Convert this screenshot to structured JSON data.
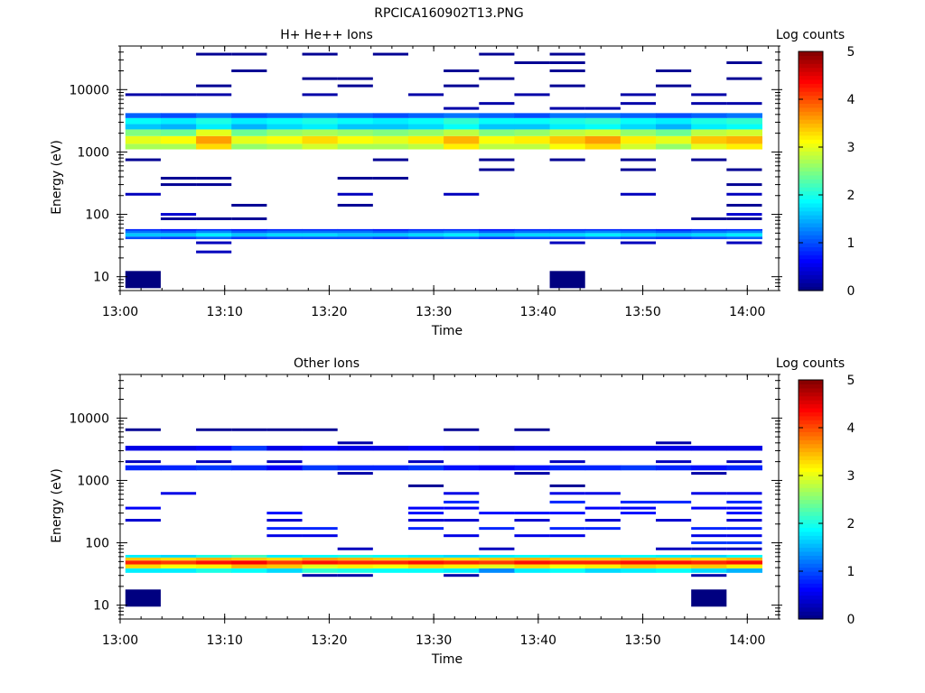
{
  "figure": {
    "title": "RPCICA160902T13.PNG"
  },
  "chart_data": [
    {
      "type": "heatmap",
      "title": "H+ He++ Ions",
      "xlabel": "Time",
      "ylabel": "Energy (eV)",
      "x_range": [
        "13:00",
        "14:03"
      ],
      "x_ticks": [
        "13:00",
        "13:10",
        "13:20",
        "13:30",
        "13:40",
        "13:50",
        "14:00"
      ],
      "y_scale": "log",
      "y_range": [
        6,
        50000
      ],
      "y_ticks": [
        "10",
        "100",
        "1000",
        "10000"
      ],
      "colorbar": {
        "label": "Log counts",
        "min": 0,
        "max": 5,
        "ticks": [
          "0",
          "1",
          "2",
          "3",
          "4",
          "5"
        ]
      },
      "data": [
        {
          "band": "solid",
          "e_min": 1100,
          "e_max": 1350,
          "z": [
            2.7,
            2.7,
            3.3,
            2.6,
            2.7,
            2.9,
            2.7,
            2.7,
            2.8,
            3.2,
            2.8,
            2.8,
            3.1,
            3.3,
            2.9,
            2.6,
            3.0,
            3.2
          ]
        },
        {
          "band": "solid",
          "e_min": 1350,
          "e_max": 1800,
          "z": [
            3.0,
            3.1,
            3.6,
            3.0,
            3.1,
            3.3,
            3.1,
            3.0,
            3.2,
            3.5,
            3.1,
            3.2,
            3.4,
            3.6,
            3.2,
            3.0,
            3.4,
            3.5
          ]
        },
        {
          "band": "solid",
          "e_min": 1800,
          "e_max": 2300,
          "z": [
            2.5,
            2.4,
            3.0,
            2.4,
            2.6,
            2.7,
            2.6,
            2.5,
            2.6,
            2.8,
            2.5,
            2.6,
            2.8,
            2.9,
            2.6,
            2.4,
            2.8,
            2.9
          ]
        },
        {
          "band": "solid",
          "e_min": 2300,
          "e_max": 2800,
          "z": [
            1.6,
            1.5,
            1.8,
            1.5,
            1.7,
            1.8,
            1.6,
            1.6,
            1.7,
            1.9,
            1.6,
            1.6,
            1.8,
            1.9,
            1.7,
            1.5,
            1.8,
            1.9
          ]
        },
        {
          "band": "solid",
          "e_min": 2800,
          "e_max": 3500,
          "z": [
            1.9,
            1.8,
            2.0,
            1.8,
            1.9,
            2.0,
            1.9,
            1.8,
            1.9,
            2.1,
            1.9,
            1.9,
            2.0,
            2.1,
            1.9,
            1.8,
            2.0,
            2.1
          ]
        },
        {
          "band": "solid",
          "e_min": 3500,
          "e_max": 4200,
          "z": [
            1.1,
            1.0,
            1.2,
            1.0,
            1.1,
            1.2,
            1.1,
            1.0,
            1.1,
            1.2,
            1.1,
            1.0,
            1.2,
            1.2,
            1.1,
            1.0,
            1.1,
            1.2
          ]
        },
        {
          "band": "solid",
          "e_min": 40,
          "e_max": 44,
          "z": [
            1.0,
            0.9,
            1.1,
            0.9,
            1.0,
            1.0,
            1.0,
            0.9,
            1.0,
            1.1,
            0.9,
            1.0,
            1.0,
            1.1,
            1.0,
            0.9,
            1.0,
            1.1
          ]
        },
        {
          "band": "solid",
          "e_min": 44,
          "e_max": 50,
          "z": [
            1.6,
            1.6,
            1.8,
            1.6,
            1.7,
            1.7,
            1.6,
            1.6,
            1.7,
            1.8,
            1.6,
            1.7,
            1.7,
            1.8,
            1.7,
            1.6,
            1.7,
            1.8
          ]
        },
        {
          "band": "solid",
          "e_min": 50,
          "e_max": 55,
          "z": [
            1.2,
            1.1,
            1.3,
            1.1,
            1.2,
            1.2,
            1.2,
            1.1,
            1.2,
            1.3,
            1.1,
            1.2,
            1.2,
            1.3,
            1.2,
            1.1,
            1.2,
            1.3
          ]
        },
        {
          "band": "solid",
          "e_min": 55,
          "e_max": 58,
          "z": [
            0.8,
            0.7,
            0.8,
            0.7,
            0.8,
            0.8,
            0.8,
            0.7,
            0.8,
            0.8,
            0.7,
            0.8,
            0.8,
            0.8,
            0.8,
            0.7,
            0.8,
            0.8
          ]
        },
        {
          "band": "sparse",
          "e": 8300,
          "cols": [
            0,
            1,
            2,
            5,
            8,
            11,
            14,
            16
          ],
          "z": 0.2
        },
        {
          "band": "sparse",
          "e": 11500,
          "cols": [
            2,
            6,
            9,
            12,
            15
          ],
          "z": 0.1
        },
        {
          "band": "sparse",
          "e": 15000,
          "cols": [
            5,
            6,
            10,
            17
          ],
          "z": 0.1
        },
        {
          "band": "sparse",
          "e": 20000,
          "cols": [
            3,
            9,
            12,
            15
          ],
          "z": 0.1
        },
        {
          "band": "sparse",
          "e": 27000,
          "cols": [
            11,
            12,
            17
          ],
          "z": 0.1
        },
        {
          "band": "sparse",
          "e": 37000,
          "cols": [
            2,
            3,
            5,
            7,
            10,
            12
          ],
          "z": 0.1
        },
        {
          "band": "sparse",
          "e": 6000,
          "cols": [
            10,
            14,
            16,
            17
          ],
          "z": 0.2
        },
        {
          "band": "sparse",
          "e": 5000,
          "cols": [
            9,
            12,
            13
          ],
          "z": 0.2
        },
        {
          "band": "sparse",
          "e": 750,
          "cols": [
            0,
            7,
            10,
            12,
            14,
            16
          ],
          "z": 0.1
        },
        {
          "band": "sparse",
          "e": 520,
          "cols": [
            10,
            14,
            17
          ],
          "z": 0.1
        },
        {
          "band": "sparse",
          "e": 380,
          "cols": [
            1,
            2,
            6,
            7
          ],
          "z": 0.1
        },
        {
          "band": "sparse",
          "e": 300,
          "cols": [
            1,
            2,
            17
          ],
          "z": 0.1
        },
        {
          "band": "sparse",
          "e": 210,
          "cols": [
            0,
            6,
            9,
            14,
            17
          ],
          "z": 0.3
        },
        {
          "band": "sparse",
          "e": 140,
          "cols": [
            3,
            6,
            17
          ],
          "z": 0.1
        },
        {
          "band": "sparse",
          "e": 100,
          "cols": [
            1,
            17
          ],
          "z": 0.4
        },
        {
          "band": "sparse",
          "e": 85,
          "cols": [
            1,
            2,
            3,
            16,
            17
          ],
          "z": 0.1
        },
        {
          "band": "sparse",
          "e": 35,
          "cols": [
            2,
            12,
            14,
            17
          ],
          "z": 0.3
        },
        {
          "band": "sparse",
          "e": 25,
          "cols": [
            2
          ],
          "z": 0.3
        },
        {
          "band": "sparse",
          "e": 9,
          "cols": [
            0,
            12
          ],
          "z": 0.0,
          "tall": true
        }
      ]
    },
    {
      "type": "heatmap",
      "title": "Other Ions",
      "xlabel": "Time",
      "ylabel": "Energy (eV)",
      "x_range": [
        "13:00",
        "14:03"
      ],
      "x_ticks": [
        "13:00",
        "13:10",
        "13:20",
        "13:30",
        "13:40",
        "13:50",
        "14:00"
      ],
      "y_scale": "log",
      "y_range": [
        6,
        50000
      ],
      "y_ticks": [
        "10",
        "100",
        "1000",
        "10000"
      ],
      "colorbar": {
        "label": "Log counts",
        "min": 0,
        "max": 5,
        "ticks": [
          "0",
          "1",
          "2",
          "3",
          "4",
          "5"
        ]
      },
      "data": [
        {
          "band": "solid",
          "e_min": 33,
          "e_max": 39,
          "z": [
            1.8,
            1.8,
            2.0,
            1.9,
            1.7,
            2.1,
            2.0,
            1.9,
            1.9,
            1.8,
            1.3,
            1.8,
            1.9,
            1.7,
            1.8,
            1.9,
            1.7,
            1.5
          ]
        },
        {
          "band": "solid",
          "e_min": 39,
          "e_max": 45,
          "z": [
            3.3,
            3.1,
            3.2,
            3.5,
            3.4,
            3.0,
            3.2,
            3.1,
            3.3,
            3.2,
            3.0,
            3.3,
            3.1,
            3.2,
            3.4,
            3.3,
            3.4,
            3.2
          ]
        },
        {
          "band": "solid",
          "e_min": 45,
          "e_max": 52,
          "z": [
            4.2,
            4.1,
            4.3,
            4.4,
            4.1,
            4.3,
            4.2,
            4.2,
            4.3,
            4.2,
            4.1,
            4.3,
            4.2,
            4.2,
            4.3,
            4.3,
            4.2,
            4.3
          ]
        },
        {
          "band": "solid",
          "e_min": 52,
          "e_max": 58,
          "z": [
            3.4,
            3.3,
            3.5,
            3.4,
            3.3,
            3.6,
            3.5,
            3.4,
            3.4,
            3.3,
            3.4,
            3.5,
            3.4,
            3.4,
            3.5,
            3.4,
            3.3,
            3.5
          ]
        },
        {
          "band": "solid",
          "e_min": 58,
          "e_max": 64,
          "z": [
            1.8,
            1.7,
            2.0,
            2.2,
            1.8,
            1.9,
            2.0,
            1.9,
            1.8,
            1.7,
            1.8,
            1.9,
            1.8,
            1.8,
            1.9,
            1.8,
            1.7,
            1.9
          ]
        },
        {
          "band": "solid",
          "e_min": 1450,
          "e_max": 1750,
          "z": [
            0.8,
            0.8,
            0.9,
            0.8,
            0.6,
            0.9,
            0.8,
            0.8,
            0.9,
            0.7,
            0.6,
            0.7,
            0.8,
            0.8,
            0.9,
            0.8,
            0.7,
            0.8
          ]
        },
        {
          "band": "solid",
          "e_min": 3000,
          "e_max": 3600,
          "z": [
            0.5,
            0.5,
            0.6,
            0.9,
            0.5,
            0.6,
            0.5,
            0.5,
            0.6,
            0.5,
            0.4,
            0.5,
            0.5,
            0.5,
            0.5,
            0.5,
            0.5,
            0.5
          ]
        },
        {
          "band": "sparse",
          "e": 6500,
          "cols": [
            0,
            2,
            3,
            4,
            5,
            9,
            11
          ],
          "z": 0.1
        },
        {
          "band": "sparse",
          "e": 4000,
          "cols": [
            6,
            15
          ],
          "z": 0.2
        },
        {
          "band": "sparse",
          "e": 2000,
          "cols": [
            0,
            2,
            4,
            8,
            12,
            15,
            17
          ],
          "z": 0.3
        },
        {
          "band": "sparse",
          "e": 1300,
          "cols": [
            6,
            11,
            16
          ],
          "z": 0.2
        },
        {
          "band": "sparse",
          "e": 820,
          "cols": [
            8,
            12
          ],
          "z": 0.1
        },
        {
          "band": "sparse",
          "e": 620,
          "cols": [
            1,
            9,
            12,
            13,
            16,
            17
          ],
          "z": 0.5
        },
        {
          "band": "sparse",
          "e": 450,
          "cols": [
            9,
            12,
            14,
            15,
            17
          ],
          "z": 0.8
        },
        {
          "band": "sparse",
          "e": 360,
          "cols": [
            0,
            8,
            9,
            13,
            14,
            16,
            17
          ],
          "z": 0.6
        },
        {
          "band": "sparse",
          "e": 300,
          "cols": [
            4,
            8,
            10,
            11,
            12,
            14,
            17
          ],
          "z": 0.7
        },
        {
          "band": "sparse",
          "e": 230,
          "cols": [
            0,
            4,
            8,
            9,
            11,
            13,
            15,
            17
          ],
          "z": 0.4
        },
        {
          "band": "sparse",
          "e": 170,
          "cols": [
            4,
            5,
            8,
            10,
            12,
            13,
            16,
            17
          ],
          "z": 0.8
        },
        {
          "band": "sparse",
          "e": 130,
          "cols": [
            4,
            5,
            9,
            11,
            12,
            16,
            17
          ],
          "z": 0.5
        },
        {
          "band": "sparse",
          "e": 100,
          "cols": [
            16,
            17
          ],
          "z": 0.9
        },
        {
          "band": "sparse",
          "e": 80,
          "cols": [
            6,
            10,
            15,
            16,
            17
          ],
          "z": 0.3
        },
        {
          "band": "sparse",
          "e": 30,
          "cols": [
            5,
            6,
            9,
            16
          ],
          "z": 0.2
        },
        {
          "band": "sparse",
          "e": 13,
          "cols": [
            0,
            16
          ],
          "z": 0.0,
          "tall": true
        }
      ]
    }
  ]
}
